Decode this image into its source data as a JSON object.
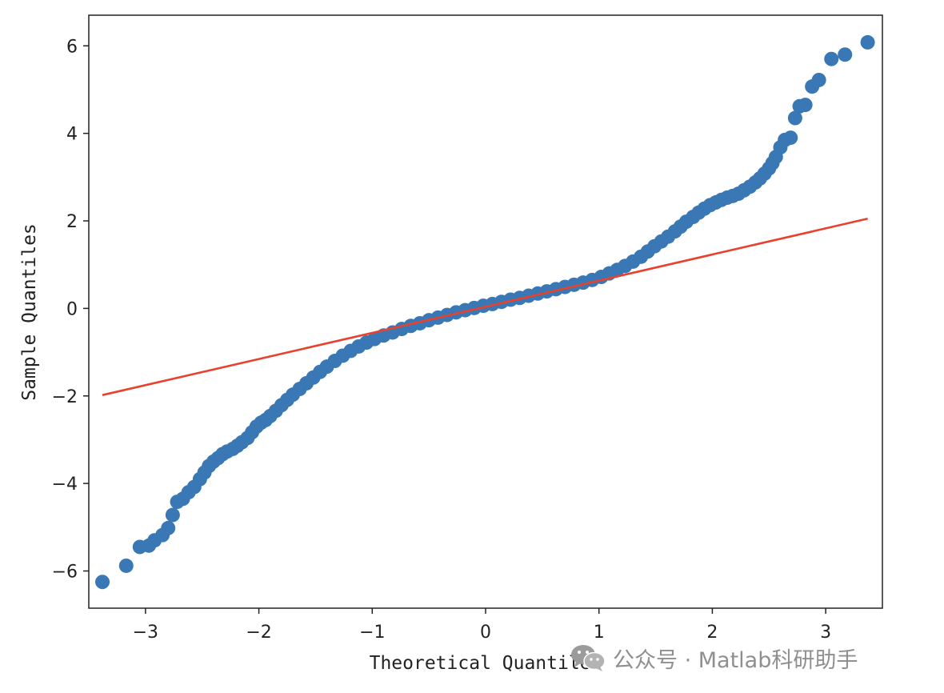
{
  "chart_data": {
    "type": "scatter",
    "title": "",
    "xlabel": "Theoretical Quantiles",
    "ylabel": "Sample Quantiles",
    "xlim": [
      -3.5,
      3.5
    ],
    "ylim": [
      -6.85,
      6.7
    ],
    "xticks": [
      -3,
      -2,
      -1,
      0,
      1,
      2,
      3
    ],
    "xtick_labels": [
      "−3",
      "−2",
      "−1",
      "0",
      "1",
      "2",
      "3"
    ],
    "yticks": [
      -6,
      -4,
      -2,
      0,
      2,
      4,
      6
    ],
    "ytick_labels": [
      "−6",
      "−4",
      "−2",
      "0",
      "2",
      "4",
      "6"
    ],
    "grid": false,
    "series": [
      {
        "name": "sample quantiles",
        "kind": "scatter",
        "color": "#3a78b5",
        "points": [
          [
            -3.38,
            -6.25
          ],
          [
            -3.17,
            -5.88
          ],
          [
            -3.05,
            -5.45
          ],
          [
            -2.97,
            -5.42
          ],
          [
            -2.92,
            -5.3
          ],
          [
            -2.85,
            -5.18
          ],
          [
            -2.8,
            -5.02
          ],
          [
            -2.76,
            -4.72
          ],
          [
            -2.72,
            -4.42
          ],
          [
            -2.67,
            -4.35
          ],
          [
            -2.62,
            -4.2
          ],
          [
            -2.57,
            -4.08
          ],
          [
            -2.52,
            -3.9
          ],
          [
            -2.48,
            -3.75
          ],
          [
            -2.44,
            -3.6
          ],
          [
            -2.4,
            -3.5
          ],
          [
            -2.36,
            -3.42
          ],
          [
            -2.32,
            -3.33
          ],
          [
            -2.28,
            -3.27
          ],
          [
            -2.23,
            -3.21
          ],
          [
            -2.19,
            -3.14
          ],
          [
            -2.15,
            -3.06
          ],
          [
            -2.1,
            -2.96
          ],
          [
            -2.06,
            -2.83
          ],
          [
            -2.02,
            -2.7
          ],
          [
            -1.98,
            -2.61
          ],
          [
            -1.94,
            -2.55
          ],
          [
            -1.9,
            -2.46
          ],
          [
            -1.85,
            -2.34
          ],
          [
            -1.8,
            -2.21
          ],
          [
            -1.75,
            -2.09
          ],
          [
            -1.7,
            -1.97
          ],
          [
            -1.64,
            -1.84
          ],
          [
            -1.58,
            -1.71
          ],
          [
            -1.52,
            -1.58
          ],
          [
            -1.46,
            -1.45
          ],
          [
            -1.4,
            -1.33
          ],
          [
            -1.33,
            -1.2
          ],
          [
            -1.26,
            -1.08
          ],
          [
            -1.19,
            -0.97
          ],
          [
            -1.12,
            -0.87
          ],
          [
            -1.05,
            -0.78
          ],
          [
            -0.98,
            -0.7
          ],
          [
            -0.9,
            -0.62
          ],
          [
            -0.82,
            -0.55
          ],
          [
            -0.74,
            -0.47
          ],
          [
            -0.66,
            -0.4
          ],
          [
            -0.58,
            -0.34
          ],
          [
            -0.5,
            -0.27
          ],
          [
            -0.42,
            -0.21
          ],
          [
            -0.34,
            -0.15
          ],
          [
            -0.26,
            -0.09
          ],
          [
            -0.18,
            -0.04
          ],
          [
            -0.1,
            0.01
          ],
          [
            -0.02,
            0.06
          ],
          [
            0.06,
            0.1
          ],
          [
            0.14,
            0.15
          ],
          [
            0.22,
            0.2
          ],
          [
            0.3,
            0.24
          ],
          [
            0.38,
            0.29
          ],
          [
            0.46,
            0.34
          ],
          [
            0.54,
            0.39
          ],
          [
            0.62,
            0.44
          ],
          [
            0.7,
            0.49
          ],
          [
            0.78,
            0.54
          ],
          [
            0.86,
            0.59
          ],
          [
            0.94,
            0.65
          ],
          [
            1.02,
            0.72
          ],
          [
            1.09,
            0.8
          ],
          [
            1.16,
            0.88
          ],
          [
            1.23,
            0.97
          ],
          [
            1.3,
            1.07
          ],
          [
            1.37,
            1.18
          ],
          [
            1.43,
            1.3
          ],
          [
            1.49,
            1.42
          ],
          [
            1.55,
            1.53
          ],
          [
            1.61,
            1.64
          ],
          [
            1.67,
            1.76
          ],
          [
            1.72,
            1.87
          ],
          [
            1.77,
            1.98
          ],
          [
            1.83,
            2.09
          ],
          [
            1.88,
            2.19
          ],
          [
            1.93,
            2.28
          ],
          [
            1.98,
            2.36
          ],
          [
            2.03,
            2.42
          ],
          [
            2.08,
            2.48
          ],
          [
            2.13,
            2.53
          ],
          [
            2.18,
            2.57
          ],
          [
            2.23,
            2.62
          ],
          [
            2.28,
            2.7
          ],
          [
            2.33,
            2.78
          ],
          [
            2.38,
            2.88
          ],
          [
            2.42,
            2.97
          ],
          [
            2.46,
            3.08
          ],
          [
            2.5,
            3.2
          ],
          [
            2.53,
            3.32
          ],
          [
            2.56,
            3.46
          ],
          [
            2.6,
            3.68
          ],
          [
            2.64,
            3.85
          ],
          [
            2.69,
            3.9
          ],
          [
            2.73,
            4.35
          ],
          [
            2.77,
            4.62
          ],
          [
            2.82,
            4.65
          ],
          [
            2.88,
            5.07
          ],
          [
            2.94,
            5.22
          ],
          [
            3.05,
            5.7
          ],
          [
            3.17,
            5.8
          ],
          [
            3.37,
            6.08
          ]
        ]
      },
      {
        "name": "reference line",
        "kind": "line",
        "color": "#e8412e",
        "points": [
          [
            -3.38,
            -1.98
          ],
          [
            3.37,
            2.05
          ]
        ]
      }
    ]
  },
  "watermark": {
    "text": "公众号 · Matlab科研助手",
    "icon": "wechat-icon"
  }
}
